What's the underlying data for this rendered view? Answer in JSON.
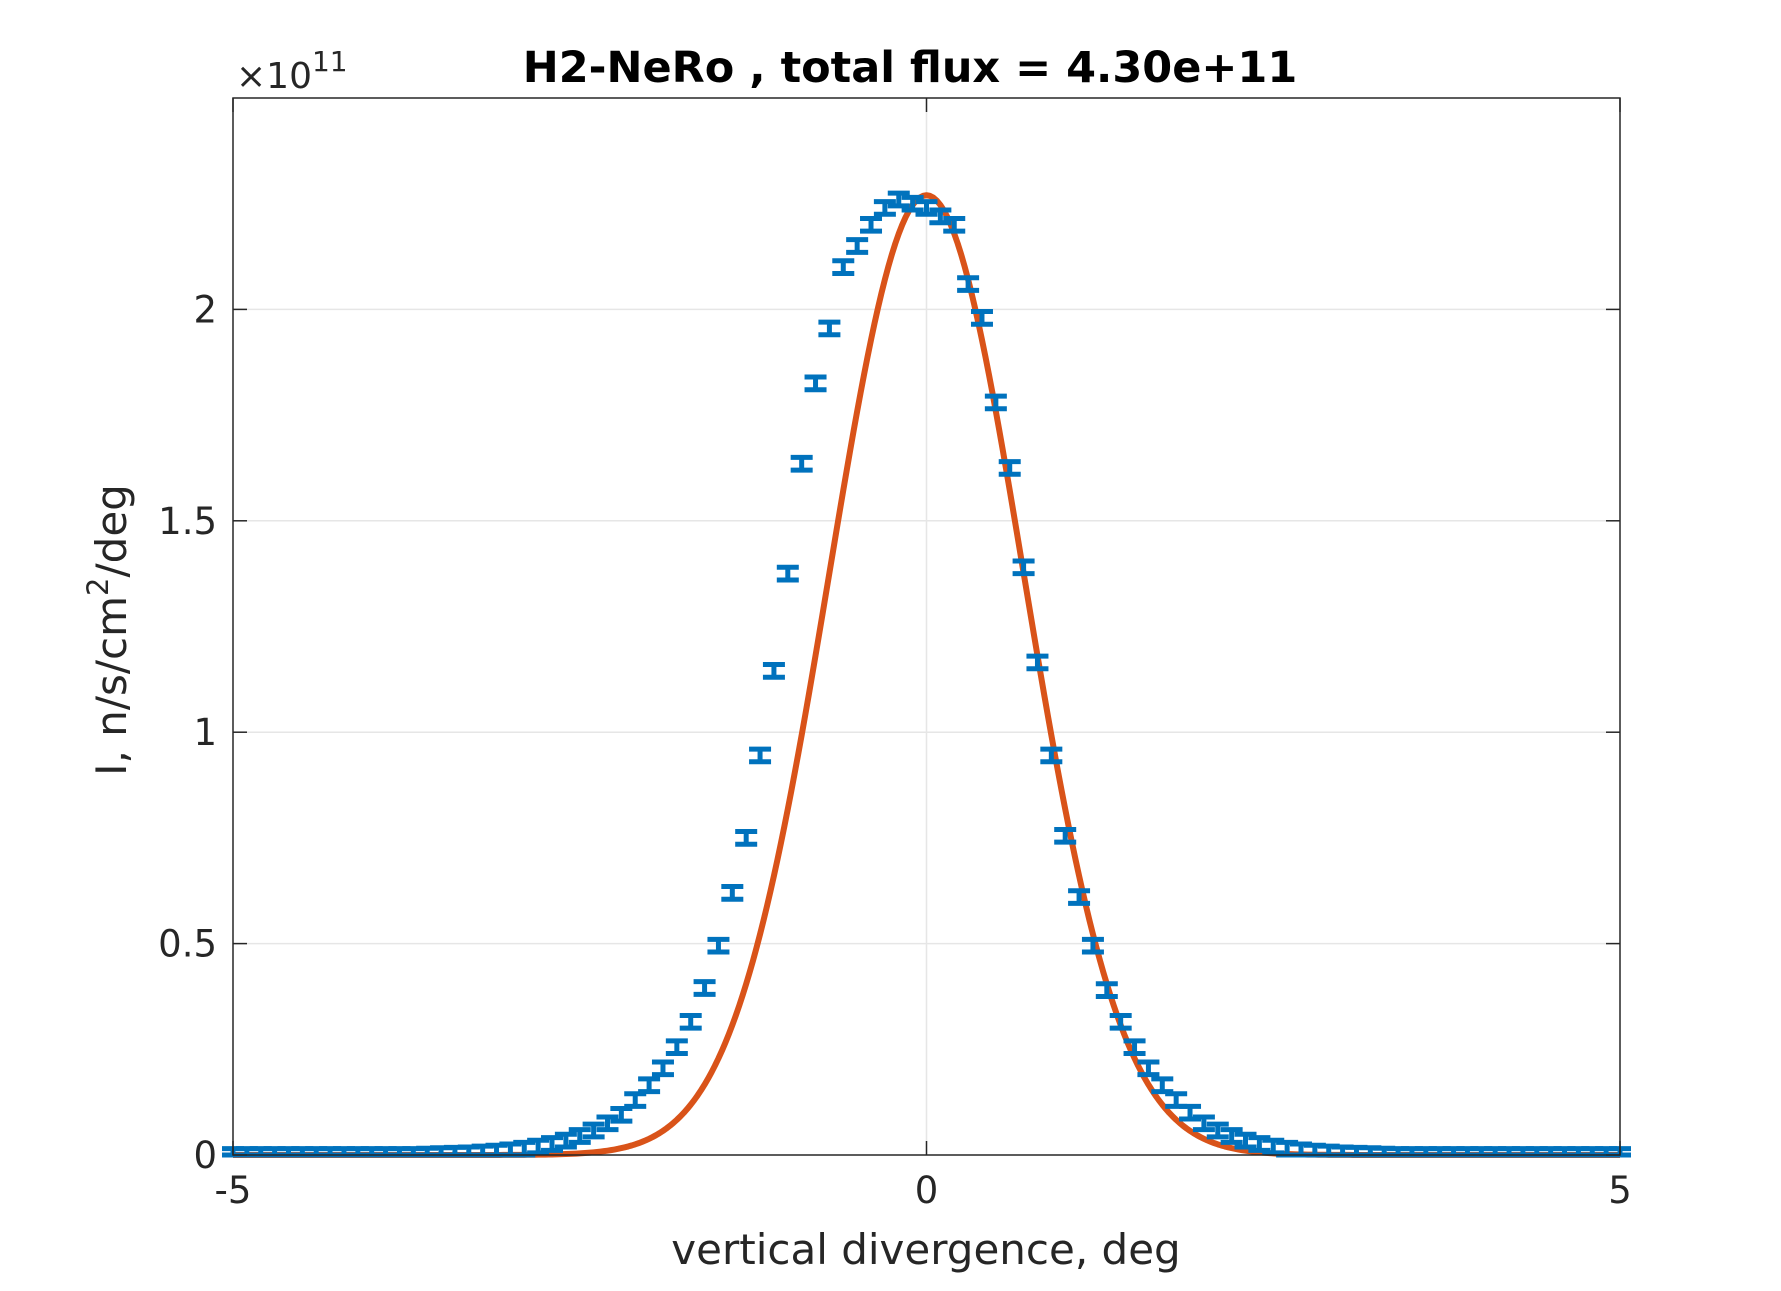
{
  "chart_data": {
    "type": "line",
    "title": "H2-NeRo , total flux =  4.30e+11",
    "xlabel": "vertical divergence, deg",
    "ylabel_main": "I, n/s/cm",
    "ylabel_sup": "2",
    "ylabel_tail": "/deg",
    "y_multiplier": {
      "base": "×10",
      "exponent": "11"
    },
    "xlim": [
      -5,
      5
    ],
    "ylim": [
      0,
      2.5
    ],
    "y_scale_factor": 100000000000.0,
    "x_ticks": [
      -5,
      0,
      5
    ],
    "x_tick_labels": [
      "-5",
      "0",
      "5"
    ],
    "y_ticks": [
      0,
      0.5,
      1,
      1.5,
      2
    ],
    "y_tick_labels": [
      "0",
      "0.5",
      "1",
      "1.5",
      "2"
    ],
    "grid": true,
    "colors": {
      "errorbar": "#0072BD",
      "fit": "#D95319",
      "axes": "#262626",
      "grid": "#e6e6e6"
    },
    "series": [
      {
        "kind": "errorbar",
        "x": [
          -5.0,
          -4.9,
          -4.8,
          -4.7,
          -4.6,
          -4.5,
          -4.4,
          -4.3,
          -4.2,
          -4.1,
          -4.0,
          -3.9,
          -3.8,
          -3.7,
          -3.6,
          -3.5,
          -3.4,
          -3.3,
          -3.2,
          -3.1,
          -3.0,
          -2.9,
          -2.8,
          -2.7,
          -2.6,
          -2.5,
          -2.4,
          -2.3,
          -2.2,
          -2.1,
          -2.0,
          -1.9,
          -1.8,
          -1.7,
          -1.6,
          -1.5,
          -1.4,
          -1.3,
          -1.2,
          -1.1,
          -1.0,
          -0.9,
          -0.8,
          -0.7,
          -0.6,
          -0.5,
          -0.4,
          -0.3,
          -0.2,
          -0.1,
          0.0,
          0.1,
          0.2,
          0.3,
          0.4,
          0.5,
          0.6,
          0.7,
          0.8,
          0.9,
          1.0,
          1.1,
          1.2,
          1.3,
          1.4,
          1.5,
          1.6,
          1.7,
          1.8,
          1.9,
          2.0,
          2.1,
          2.2,
          2.3,
          2.4,
          2.5,
          2.6,
          2.7,
          2.8,
          2.9,
          3.0,
          3.1,
          3.2,
          3.3,
          3.4,
          3.5,
          3.6,
          3.7,
          3.8,
          3.9,
          4.0,
          4.1,
          4.2,
          4.3,
          4.4,
          4.5,
          4.6,
          4.7,
          4.8,
          4.9,
          5.0
        ],
        "y": [
          0.0,
          0.0,
          0.0,
          0.0,
          0.0,
          0.0,
          0.0,
          0.0,
          0.0,
          0.0,
          0.0,
          0.0,
          0.0,
          0.0,
          0.001,
          0.002,
          0.003,
          0.004,
          0.006,
          0.008,
          0.011,
          0.015,
          0.02,
          0.026,
          0.034,
          0.045,
          0.058,
          0.075,
          0.095,
          0.13,
          0.165,
          0.205,
          0.255,
          0.315,
          0.395,
          0.495,
          0.62,
          0.75,
          0.945,
          1.145,
          1.375,
          1.635,
          1.825,
          1.955,
          2.1,
          2.15,
          2.2,
          2.24,
          2.26,
          2.25,
          2.24,
          2.22,
          2.2,
          2.06,
          1.98,
          1.78,
          1.625,
          1.39,
          1.165,
          0.945,
          0.755,
          0.61,
          0.495,
          0.39,
          0.315,
          0.255,
          0.205,
          0.165,
          0.13,
          0.1,
          0.075,
          0.058,
          0.045,
          0.034,
          0.026,
          0.02,
          0.015,
          0.011,
          0.008,
          0.006,
          0.004,
          0.003,
          0.002,
          0.001,
          0.0,
          0.0,
          0.0,
          0.0,
          0.0,
          0.0,
          0.0,
          0.0,
          0.0,
          0.0,
          0.0,
          0.0,
          0.0,
          0.0,
          0.0,
          0.0,
          0.0
        ],
        "err": 0.015
      },
      {
        "kind": "fit",
        "sigma": 0.7,
        "amplitude": 2.27,
        "x_range": [
          -5,
          5
        ]
      }
    ]
  }
}
